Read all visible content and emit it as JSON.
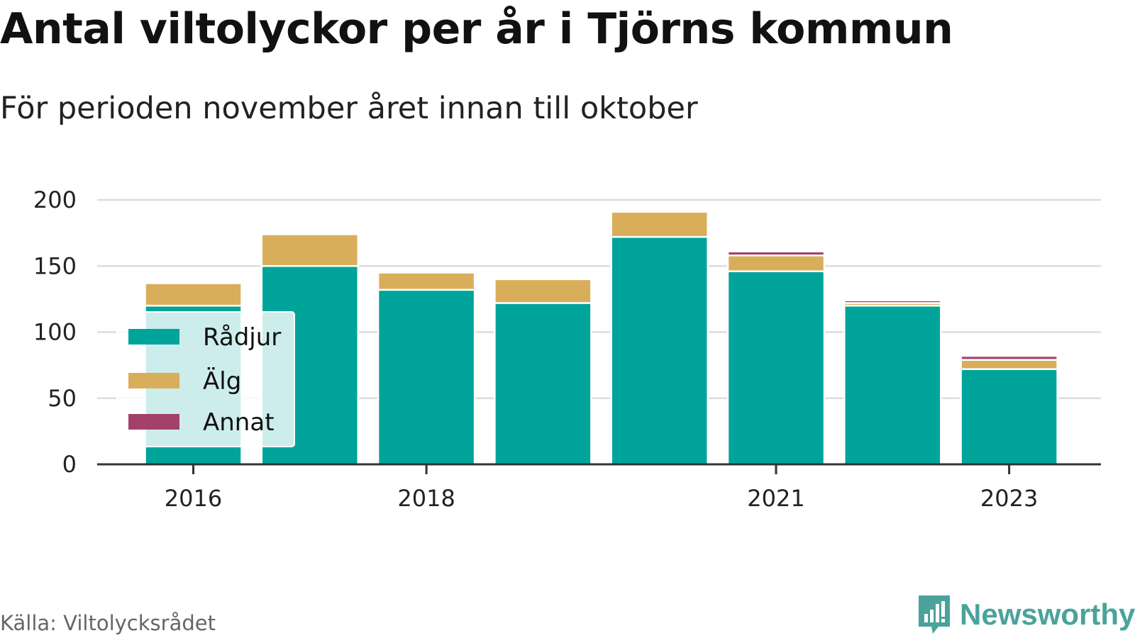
{
  "title": "Antal viltolyckor per år i Tjörns kommun",
  "subtitle": "För perioden november året innan till oktober",
  "source": "Källa: Viltolycksrådet",
  "brand": {
    "name": "Newsworthy",
    "icon": "newsworthy-logo-icon"
  },
  "colors": {
    "radjur": "#00a49a",
    "alg": "#d9ae5b",
    "annat": "#a3416b",
    "grid": "#dddddd",
    "axis": "#333333"
  },
  "chart_data": {
    "type": "bar",
    "stacked": true,
    "x": [
      2016,
      2017,
      2018,
      2019,
      2020,
      2021,
      2022,
      2023
    ],
    "x_tick_labels": [
      "2016",
      "2018",
      "2021",
      "2023"
    ],
    "x_tick_values": [
      2016,
      2018,
      2021,
      2023
    ],
    "ylim": [
      0,
      200
    ],
    "y_ticks": [
      0,
      50,
      100,
      150,
      200
    ],
    "grid": true,
    "legend_position": "left",
    "series": [
      {
        "name": "Rådjur",
        "color": "#00a49a",
        "values": [
          120,
          150,
          132,
          122,
          172,
          146,
          120,
          72
        ]
      },
      {
        "name": "Älg",
        "color": "#d9ae5b",
        "values": [
          17,
          24,
          13,
          18,
          19,
          12,
          2,
          7
        ]
      },
      {
        "name": "Annat",
        "color": "#a3416b",
        "values": [
          0,
          0,
          0,
          0,
          0,
          3,
          2,
          3
        ]
      }
    ]
  }
}
